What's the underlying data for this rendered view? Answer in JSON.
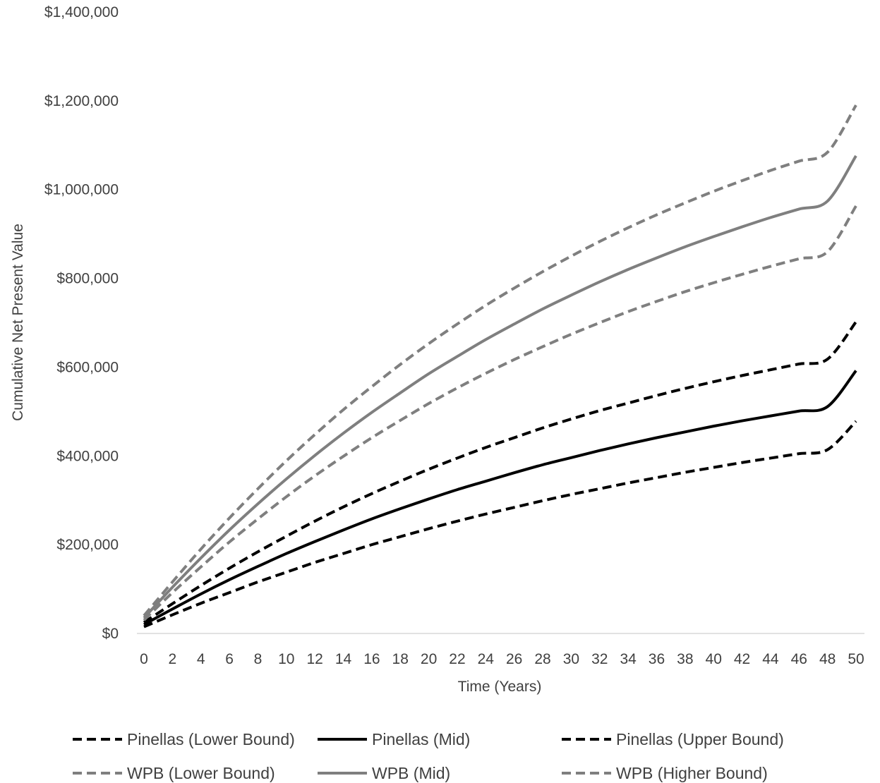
{
  "chart_data": {
    "type": "line",
    "xlabel": "Time (Years)",
    "ylabel": "Cumulative Net Present Value",
    "xlim": [
      0,
      50
    ],
    "ylim": [
      0,
      1400000
    ],
    "x_ticks": [
      0,
      2,
      4,
      6,
      8,
      10,
      12,
      14,
      16,
      18,
      20,
      22,
      24,
      26,
      28,
      30,
      32,
      34,
      36,
      38,
      40,
      42,
      44,
      46,
      48,
      50
    ],
    "x_tick_labels": [
      "0",
      "2",
      "4",
      "6",
      "8",
      "10",
      "12",
      "14",
      "16",
      "18",
      "20",
      "22",
      "24",
      "26",
      "28",
      "30",
      "32",
      "34",
      "36",
      "38",
      "40",
      "42",
      "44",
      "46",
      "48",
      "50"
    ],
    "y_ticks": [
      0,
      200000,
      400000,
      600000,
      800000,
      1000000,
      1200000,
      1400000
    ],
    "y_tick_labels": [
      "$0",
      "$200,000",
      "$400,000",
      "$600,000",
      "$800,000",
      "$1,000,000",
      "$1,200,000",
      "$1,400,000"
    ],
    "grid": false,
    "legend_position": "bottom",
    "x": [
      0,
      2,
      4,
      6,
      8,
      10,
      12,
      14,
      16,
      18,
      20,
      22,
      24,
      26,
      28,
      30,
      32,
      34,
      36,
      38,
      40,
      42,
      44,
      46,
      48,
      50
    ],
    "series": [
      {
        "name": "Pinellas (Lower Bound)",
        "color": "#000000",
        "dash": "dashed",
        "values": [
          15000,
          42000,
          68000,
          92000,
          116000,
          138000,
          160000,
          180000,
          200000,
          218000,
          236000,
          253000,
          269000,
          284000,
          299000,
          313000,
          326000,
          339000,
          351000,
          363000,
          374000,
          385000,
          395000,
          405000,
          414000,
          478000
        ]
      },
      {
        "name": "Pinellas (Mid)",
        "color": "#000000",
        "dash": "solid",
        "values": [
          20000,
          55000,
          89000,
          121000,
          151000,
          180000,
          207000,
          233000,
          258000,
          281000,
          303000,
          324000,
          343000,
          362000,
          380000,
          396000,
          412000,
          427000,
          441000,
          454000,
          467000,
          479000,
          490000,
          501000,
          511000,
          592000
        ]
      },
      {
        "name": "Pinellas (Upper Bound)",
        "color": "#000000",
        "dash": "dashed",
        "values": [
          25000,
          67000,
          108000,
          147000,
          184000,
          219000,
          253000,
          285000,
          315000,
          343000,
          370000,
          395000,
          419000,
          441000,
          463000,
          483000,
          502000,
          519000,
          536000,
          552000,
          567000,
          581000,
          594000,
          607000,
          618000,
          702000
        ]
      },
      {
        "name": "WPB (Lower Bound)",
        "color": "#7f7f7f",
        "dash": "dashed",
        "values": [
          30000,
          92000,
          150000,
          206000,
          258000,
          308000,
          355000,
          399000,
          441000,
          480000,
          518000,
          553000,
          586000,
          617000,
          646000,
          674000,
          700000,
          725000,
          748000,
          770000,
          790000,
          809000,
          827000,
          844000,
          860000,
          963000
        ]
      },
      {
        "name": "WPB (Mid)",
        "color": "#7f7f7f",
        "dash": "solid",
        "values": [
          35000,
          104000,
          170000,
          233000,
          292000,
          348000,
          401000,
          451000,
          498000,
          542000,
          585000,
          624000,
          662000,
          697000,
          731000,
          762000,
          792000,
          820000,
          846000,
          871000,
          894000,
          916000,
          937000,
          956000,
          974000,
          1076000
        ]
      },
      {
        "name": "WPB (Higher Bound)",
        "color": "#7f7f7f",
        "dash": "dashed",
        "values": [
          40000,
          116000,
          190000,
          260000,
          326000,
          389000,
          448000,
          504000,
          556000,
          606000,
          653000,
          697000,
          739000,
          778000,
          815000,
          850000,
          883000,
          914000,
          943000,
          970000,
          996000,
          1020000,
          1043000,
          1064000,
          1084000,
          1190000
        ]
      }
    ]
  }
}
